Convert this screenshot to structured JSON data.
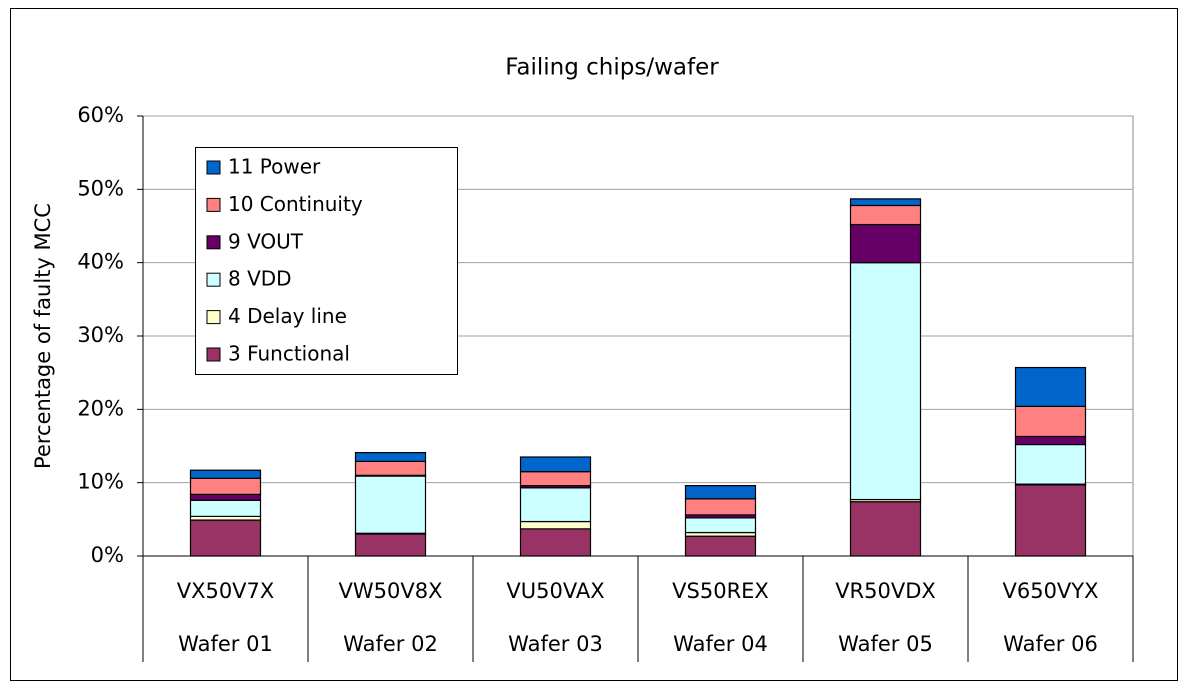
{
  "chart_data": {
    "type": "stacked_bar",
    "title": "Failing chips/wafer",
    "y_label": "Percentage of faulty MCC",
    "categories": [
      "VX50V7X",
      "VW50V8X",
      "VU50VAX",
      "VS50REX",
      "VR50VDX",
      "V650VYX"
    ],
    "category_groups": [
      "Wafer 01",
      "Wafer 02",
      "Wafer 03",
      "Wafer 04",
      "Wafer 05",
      "Wafer 06"
    ],
    "series": [
      {
        "name": "3 Functional",
        "color": "#993366",
        "values": [
          4.9,
          3.0,
          3.7,
          2.7,
          7.4,
          9.7
        ]
      },
      {
        "name": "4 Delay line",
        "color": "#ffffcc",
        "values": [
          0.5,
          0.1,
          1.0,
          0.5,
          0.3,
          0.1
        ]
      },
      {
        "name": "8 VDD",
        "color": "#ccffff",
        "values": [
          2.2,
          7.8,
          4.6,
          2.0,
          32.3,
          5.4
        ]
      },
      {
        "name": "9 VOUT",
        "color": "#660066",
        "values": [
          0.8,
          0.1,
          0.3,
          0.4,
          5.2,
          1.1
        ]
      },
      {
        "name": "10 Continuity",
        "color": "#ff8080",
        "values": [
          2.2,
          1.9,
          1.9,
          2.2,
          2.6,
          4.1
        ]
      },
      {
        "name": "11 Power",
        "color": "#0066cc",
        "values": [
          1.1,
          1.2,
          2.0,
          1.8,
          0.9,
          5.3
        ]
      }
    ],
    "ylim": [
      0,
      60
    ],
    "yticks": [
      {
        "value": 0,
        "label": "0%"
      },
      {
        "value": 10,
        "label": "10%"
      },
      {
        "value": 20,
        "label": "20%"
      },
      {
        "value": 30,
        "label": "30%"
      },
      {
        "value": 40,
        "label": "40%"
      },
      {
        "value": 50,
        "label": "50%"
      },
      {
        "value": 60,
        "label": "60%"
      }
    ],
    "grid": true,
    "legend": "upper left"
  }
}
